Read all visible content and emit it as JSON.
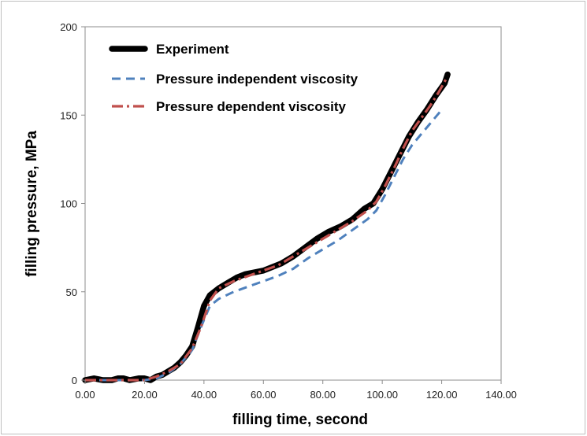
{
  "chart_data": {
    "type": "line",
    "xlabel": "filling time, second",
    "ylabel": "filling pressure, MPa",
    "xlim": [
      0,
      140
    ],
    "ylim": [
      0,
      200
    ],
    "x_ticks": [
      "0.00",
      "20.00",
      "40.00",
      "60.00",
      "80.00",
      "100.00",
      "120.00",
      "140.00"
    ],
    "y_ticks": [
      "0",
      "50",
      "100",
      "150",
      "200"
    ],
    "grid": false,
    "legend_position": "top-left",
    "series": [
      {
        "name": "Experiment",
        "color": "#000000",
        "style": "thick-solid",
        "points": [
          [
            0,
            0
          ],
          [
            3,
            1
          ],
          [
            6,
            0
          ],
          [
            9,
            0
          ],
          [
            11,
            1
          ],
          [
            13,
            1
          ],
          [
            15,
            0
          ],
          [
            18,
            1
          ],
          [
            20,
            1
          ],
          [
            22,
            0
          ],
          [
            24,
            2
          ],
          [
            26,
            3
          ],
          [
            28,
            5
          ],
          [
            30,
            7
          ],
          [
            32,
            10
          ],
          [
            34,
            14
          ],
          [
            36,
            19
          ],
          [
            38,
            30
          ],
          [
            40,
            42
          ],
          [
            42,
            48
          ],
          [
            45,
            52
          ],
          [
            48,
            55
          ],
          [
            51,
            58
          ],
          [
            54,
            60
          ],
          [
            57,
            61
          ],
          [
            60,
            62
          ],
          [
            63,
            64
          ],
          [
            66,
            66
          ],
          [
            70,
            70
          ],
          [
            74,
            75
          ],
          [
            78,
            80
          ],
          [
            82,
            84
          ],
          [
            86,
            87
          ],
          [
            90,
            91
          ],
          [
            94,
            97
          ],
          [
            97,
            100
          ],
          [
            100,
            108
          ],
          [
            103,
            118
          ],
          [
            106,
            128
          ],
          [
            109,
            138
          ],
          [
            112,
            146
          ],
          [
            115,
            153
          ],
          [
            118,
            161
          ],
          [
            121,
            168
          ],
          [
            122,
            173
          ]
        ]
      },
      {
        "name": "Pressure independent viscosity",
        "color": "#4f81bd",
        "style": "dashed",
        "points": [
          [
            0,
            0
          ],
          [
            20,
            0
          ],
          [
            24,
            1
          ],
          [
            28,
            4
          ],
          [
            32,
            9
          ],
          [
            36,
            17
          ],
          [
            39,
            30
          ],
          [
            42,
            42
          ],
          [
            45,
            46
          ],
          [
            50,
            50
          ],
          [
            55,
            53
          ],
          [
            60,
            56
          ],
          [
            65,
            59
          ],
          [
            70,
            63
          ],
          [
            75,
            69
          ],
          [
            80,
            74
          ],
          [
            85,
            79
          ],
          [
            90,
            85
          ],
          [
            95,
            91
          ],
          [
            98,
            96
          ],
          [
            101,
            105
          ],
          [
            104,
            115
          ],
          [
            107,
            125
          ],
          [
            110,
            133
          ],
          [
            113,
            139
          ],
          [
            116,
            145
          ],
          [
            120,
            153
          ]
        ]
      },
      {
        "name": "Pressure dependent viscosity",
        "color": "#c0504d",
        "style": "dash-dot",
        "points": [
          [
            0,
            0
          ],
          [
            20,
            0
          ],
          [
            24,
            2
          ],
          [
            28,
            5
          ],
          [
            32,
            9
          ],
          [
            36,
            18
          ],
          [
            39,
            30
          ],
          [
            42,
            45
          ],
          [
            45,
            52
          ],
          [
            50,
            56
          ],
          [
            55,
            59
          ],
          [
            60,
            62
          ],
          [
            65,
            65
          ],
          [
            70,
            70
          ],
          [
            75,
            75
          ],
          [
            80,
            80
          ],
          [
            85,
            85
          ],
          [
            90,
            90
          ],
          [
            95,
            96
          ],
          [
            98,
            101
          ],
          [
            101,
            110
          ],
          [
            104,
            120
          ],
          [
            107,
            131
          ],
          [
            110,
            141
          ],
          [
            113,
            148
          ],
          [
            116,
            155
          ],
          [
            119,
            163
          ],
          [
            122,
            172
          ]
        ]
      }
    ]
  }
}
